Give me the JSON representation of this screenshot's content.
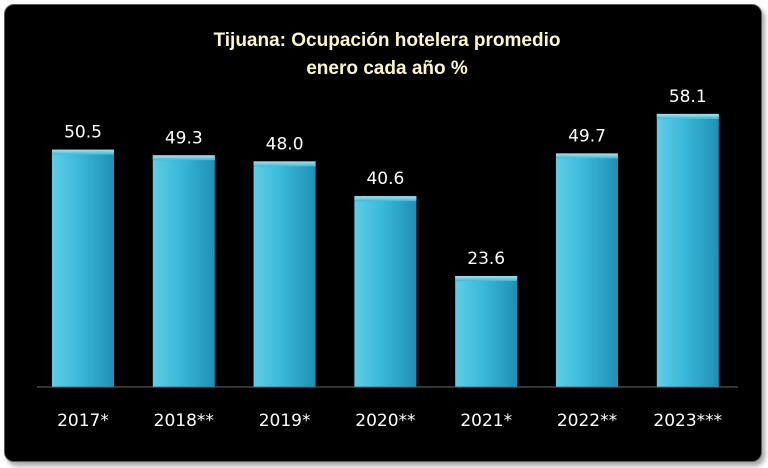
{
  "chart_data": {
    "type": "bar",
    "title": "Tijuana: Ocupación hotelera promedio",
    "subtitle": "enero cada año %",
    "categories": [
      "2017*",
      "2018**",
      "2019*",
      "2020**",
      "2021*",
      "2022**",
      "2023***"
    ],
    "values": [
      50.5,
      49.3,
      48.0,
      40.6,
      23.6,
      49.7,
      58.1
    ],
    "data_labels": [
      "50.5",
      "49.3",
      "48.0",
      "40.6",
      "23.6",
      "49.7",
      "58.1"
    ],
    "ylim": [
      0,
      60
    ],
    "grid": false,
    "bar_color": "#3ab8d8",
    "background_color": "#000000"
  }
}
